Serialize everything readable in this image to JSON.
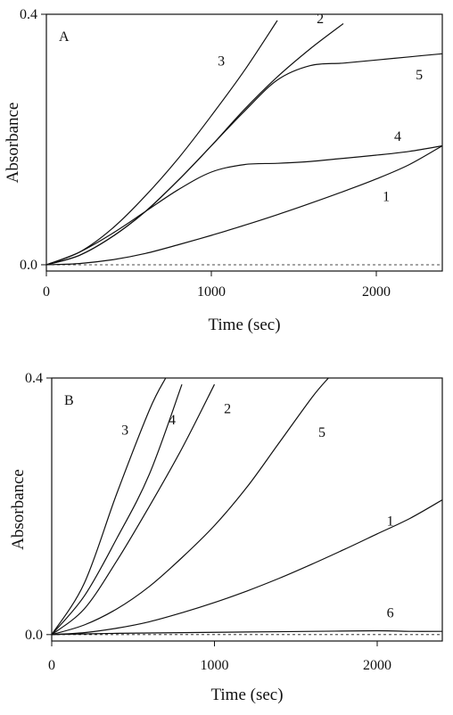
{
  "chart_data": [
    {
      "type": "line",
      "panel_label": "A",
      "xlabel": "Time (sec)",
      "ylabel": "Absorbance",
      "xlim": [
        0,
        2400
      ],
      "ylim": [
        -0.01,
        0.4
      ],
      "xticks": [
        0,
        1000,
        2000
      ],
      "xtick_labels": [
        "0",
        "1000",
        "2000"
      ],
      "yticks": [
        0.0,
        0.4
      ],
      "ytick_labels": [
        "0.0",
        "0.4"
      ],
      "grid": false,
      "legend": "none",
      "baseline": 0.0,
      "series": [
        {
          "name": "1",
          "x": [
            0,
            200,
            400,
            600,
            800,
            1000,
            1200,
            1400,
            1600,
            1800,
            2000,
            2200,
            2400
          ],
          "y": [
            0.0,
            0.002,
            0.008,
            0.018,
            0.032,
            0.047,
            0.063,
            0.08,
            0.098,
            0.117,
            0.137,
            0.16,
            0.19
          ]
        },
        {
          "name": "2",
          "x": [
            0,
            200,
            400,
            600,
            800,
            1000,
            1200,
            1400,
            1600,
            1800
          ],
          "y": [
            0.0,
            0.015,
            0.045,
            0.085,
            0.135,
            0.19,
            0.248,
            0.3,
            0.345,
            0.385
          ]
        },
        {
          "name": "3",
          "x": [
            0,
            200,
            400,
            600,
            800,
            1000,
            1200,
            1400
          ],
          "y": [
            0.0,
            0.02,
            0.058,
            0.11,
            0.17,
            0.238,
            0.31,
            0.39
          ]
        },
        {
          "name": "4",
          "x": [
            0,
            200,
            400,
            600,
            800,
            1000,
            1200,
            1400,
            1600,
            1800,
            2000,
            2200,
            2400
          ],
          "y": [
            0.0,
            0.02,
            0.05,
            0.085,
            0.12,
            0.148,
            0.16,
            0.162,
            0.165,
            0.17,
            0.175,
            0.181,
            0.19
          ]
        },
        {
          "name": "5",
          "x": [
            0,
            200,
            400,
            600,
            800,
            1000,
            1200,
            1400,
            1600,
            1800,
            2000,
            2200,
            2400
          ],
          "y": [
            0.0,
            0.015,
            0.045,
            0.085,
            0.135,
            0.19,
            0.245,
            0.295,
            0.318,
            0.322,
            0.327,
            0.332,
            0.337
          ]
        }
      ],
      "curve_labels": [
        {
          "text": "3",
          "x": 1060,
          "y": 0.318
        },
        {
          "text": "2",
          "x": 1660,
          "y": 0.386
        },
        {
          "text": "5",
          "x": 2260,
          "y": 0.296
        },
        {
          "text": "4",
          "x": 2130,
          "y": 0.198
        },
        {
          "text": "1",
          "x": 2060,
          "y": 0.102
        }
      ]
    },
    {
      "type": "line",
      "panel_label": "B",
      "xlabel": "Time (sec)",
      "ylabel": "Absorbance",
      "xlim": [
        0,
        2400
      ],
      "ylim": [
        -0.01,
        0.4
      ],
      "xticks": [
        0,
        1000,
        2000
      ],
      "xtick_labels": [
        "0",
        "1000",
        "2000"
      ],
      "yticks": [
        0.0,
        0.4
      ],
      "ytick_labels": [
        "0.0",
        "0.4"
      ],
      "grid": false,
      "legend": "none",
      "baseline": 0.0,
      "series": [
        {
          "name": "1",
          "x": [
            0,
            200,
            400,
            600,
            800,
            1000,
            1200,
            1400,
            1600,
            1800,
            2000,
            2200,
            2400
          ],
          "y": [
            0.0,
            0.003,
            0.01,
            0.02,
            0.034,
            0.05,
            0.068,
            0.088,
            0.11,
            0.133,
            0.157,
            0.181,
            0.21
          ]
        },
        {
          "name": "2",
          "x": [
            0,
            200,
            400,
            600,
            800,
            1000
          ],
          "y": [
            0.0,
            0.04,
            0.115,
            0.2,
            0.29,
            0.39
          ]
        },
        {
          "name": "3",
          "x": [
            0,
            200,
            400,
            600,
            700
          ],
          "y": [
            0.0,
            0.08,
            0.22,
            0.35,
            0.4
          ]
        },
        {
          "name": "4",
          "x": [
            0,
            200,
            400,
            600,
            800
          ],
          "y": [
            0.0,
            0.06,
            0.15,
            0.25,
            0.39
          ]
        },
        {
          "name": "5",
          "x": [
            0,
            200,
            400,
            600,
            800,
            1000,
            1200,
            1400,
            1600,
            1700
          ],
          "y": [
            0.0,
            0.015,
            0.04,
            0.075,
            0.12,
            0.17,
            0.23,
            0.3,
            0.37,
            0.4
          ]
        },
        {
          "name": "6",
          "x": [
            0,
            400,
            800,
            1200,
            1600,
            2000,
            2200,
            2400
          ],
          "y": [
            0.0,
            0.002,
            0.003,
            0.004,
            0.005,
            0.006,
            0.005,
            0.005
          ]
        }
      ],
      "curve_labels": [
        {
          "text": "3",
          "x": 450,
          "y": 0.312
        },
        {
          "text": "4",
          "x": 740,
          "y": 0.328
        },
        {
          "text": "2",
          "x": 1080,
          "y": 0.345
        },
        {
          "text": "5",
          "x": 1660,
          "y": 0.308
        },
        {
          "text": "1",
          "x": 2080,
          "y": 0.17
        },
        {
          "text": "6",
          "x": 2080,
          "y": 0.027
        }
      ]
    }
  ]
}
